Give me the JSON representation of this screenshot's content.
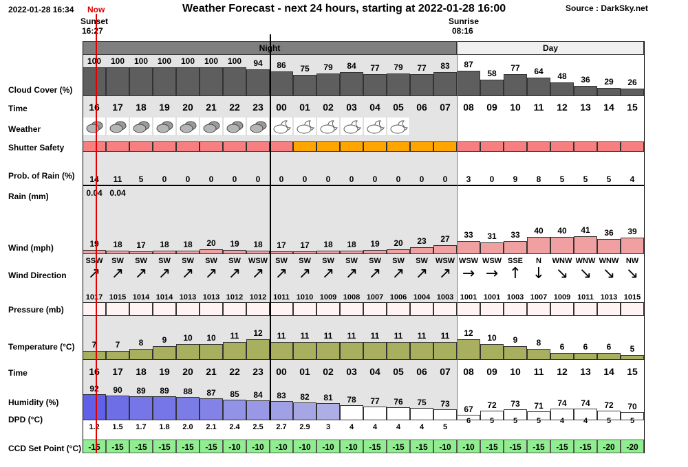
{
  "header": {
    "timestamp": "2022-01-28 16:34",
    "now_label": "Now",
    "title": "Weather Forecast - next 24 hours, starting at 2022-01-28 16:00",
    "source": "Source : DarkSky.net",
    "sunset_label": "Sunset",
    "sunset_time": "16:27",
    "sunrise_label": "Sunrise",
    "sunrise_time": "08:16",
    "night_label": "Night",
    "day_label": "Day"
  },
  "labels": {
    "cloud": "Cloud Cover (%)",
    "time": "Time",
    "weather": "Weather",
    "shutter": "Shutter Safety",
    "rain_prob": "Prob. of Rain (%)",
    "rain_mm": "Rain (mm)",
    "wind": "Wind (mph)",
    "wind_dir": "Wind Direction",
    "pressure": "Pressure (mb)",
    "temperature": "Temperature (°C)",
    "time2": "Time",
    "humidity": "Humidity (%)",
    "dpd": "DPD (°C)",
    "ccd": "CCD Set Point (°C)"
  },
  "hours": [
    "16",
    "17",
    "18",
    "19",
    "20",
    "21",
    "22",
    "23",
    "00",
    "01",
    "02",
    "03",
    "04",
    "05",
    "06",
    "07",
    "08",
    "09",
    "10",
    "11",
    "12",
    "13",
    "14",
    "15"
  ],
  "night_count": 16,
  "cloud": [
    100,
    100,
    100,
    100,
    100,
    100,
    100,
    94,
    86,
    75,
    79,
    84,
    77,
    79,
    77,
    83,
    87,
    58,
    77,
    64,
    48,
    36,
    29,
    26
  ],
  "weather_icons": [
    "cloudy",
    "cloudy",
    "cloudy",
    "cloudy",
    "cloudy",
    "cloudy",
    "cloudy",
    "cloudy",
    "partly-cloudy-night",
    "partly-cloudy-night",
    "partly-cloudy-night",
    "partly-cloudy-night",
    "partly-cloudy-night",
    "partly-cloudy-night",
    "none",
    "none",
    "none",
    "none",
    "none",
    "none",
    "none",
    "none",
    "none",
    "none"
  ],
  "shutter": [
    "red",
    "red",
    "red",
    "red",
    "red",
    "red",
    "red",
    "red",
    "red",
    "orange",
    "orange",
    "orange",
    "orange",
    "orange",
    "orange",
    "orange",
    "red",
    "red",
    "red",
    "red",
    "red",
    "red",
    "red",
    "red"
  ],
  "shutter_colors": {
    "red": "#f77f7f",
    "orange": "#ffa500"
  },
  "rain_prob": [
    14,
    11,
    5,
    0,
    0,
    0,
    0,
    0,
    0,
    0,
    0,
    0,
    0,
    0,
    0,
    0,
    3,
    0,
    9,
    8,
    5,
    5,
    5,
    4
  ],
  "rain_mm": [
    "0.04",
    "0.04",
    "",
    "",
    "",
    "",
    "",
    "",
    "",
    "",
    "",
    "",
    "",
    "",
    "",
    "",
    "",
    "",
    "",
    "",
    "",
    "",
    "",
    ""
  ],
  "wind": [
    19,
    18,
    17,
    18,
    18,
    20,
    19,
    18,
    17,
    17,
    18,
    18,
    19,
    20,
    23,
    27,
    33,
    31,
    33,
    40,
    40,
    41,
    36,
    39
  ],
  "wind_dir": [
    "SSW",
    "SW",
    "SW",
    "SW",
    "SW",
    "SW",
    "SW",
    "WSW",
    "SW",
    "SW",
    "SW",
    "SW",
    "SW",
    "SW",
    "SW",
    "WSW",
    "WSW",
    "WSW",
    "SSE",
    "N",
    "WNW",
    "WNW",
    "WNW",
    "NW"
  ],
  "wind_arrow": [
    "↗",
    "↗",
    "↗",
    "↗",
    "↗",
    "↗",
    "↗",
    "↗",
    "↗",
    "↗",
    "↗",
    "↗",
    "↗",
    "↗",
    "↗",
    "↗",
    "→",
    "→",
    "↑",
    "↓",
    "↘",
    "↘",
    "↘",
    "↘"
  ],
  "pressure": [
    1017,
    1015,
    1014,
    1014,
    1013,
    1013,
    1012,
    1012,
    1011,
    1010,
    1009,
    1008,
    1007,
    1006,
    1004,
    1003,
    1001,
    1001,
    1003,
    1007,
    1009,
    1011,
    1013,
    1015
  ],
  "temperature": [
    7,
    7,
    8,
    9,
    10,
    10,
    11,
    12,
    11,
    11,
    11,
    11,
    11,
    11,
    11,
    11,
    12,
    10,
    9,
    8,
    6,
    6,
    6,
    5
  ],
  "humidity": [
    92,
    90,
    89,
    89,
    88,
    87,
    85,
    84,
    83,
    82,
    81,
    78,
    77,
    76,
    75,
    73,
    67,
    72,
    73,
    71,
    74,
    74,
    72,
    70
  ],
  "dpd": [
    "1.2",
    "1.5",
    "1.7",
    "1.8",
    "2.0",
    "2.1",
    "2.4",
    "2.5",
    "2.7",
    "2.9",
    "3",
    "4",
    "4",
    "4",
    "4",
    "5",
    "6",
    "5",
    "5",
    "5",
    "4",
    "4",
    "5",
    "5"
  ],
  "ccd": [
    "-15",
    "-15",
    "-15",
    "-15",
    "-15",
    "-15",
    "-10",
    "-10",
    "-10",
    "-10",
    "-10",
    "-10",
    "-15",
    "-15",
    "-15",
    "-10",
    "-10",
    "-15",
    "-15",
    "-15",
    "-15",
    "-15",
    "-20",
    "-20"
  ],
  "colors": {
    "night_bg": "#e4e4e4",
    "cloud_fill": "#5e5e5e",
    "wind_fill": "#f0a0a0",
    "temp_fill": "#a8b060",
    "humidity_fill": "#6060e8",
    "ccd_fill": "#90ee90",
    "now_line": "#e00000",
    "grid_green": "#3c8c3c"
  }
}
